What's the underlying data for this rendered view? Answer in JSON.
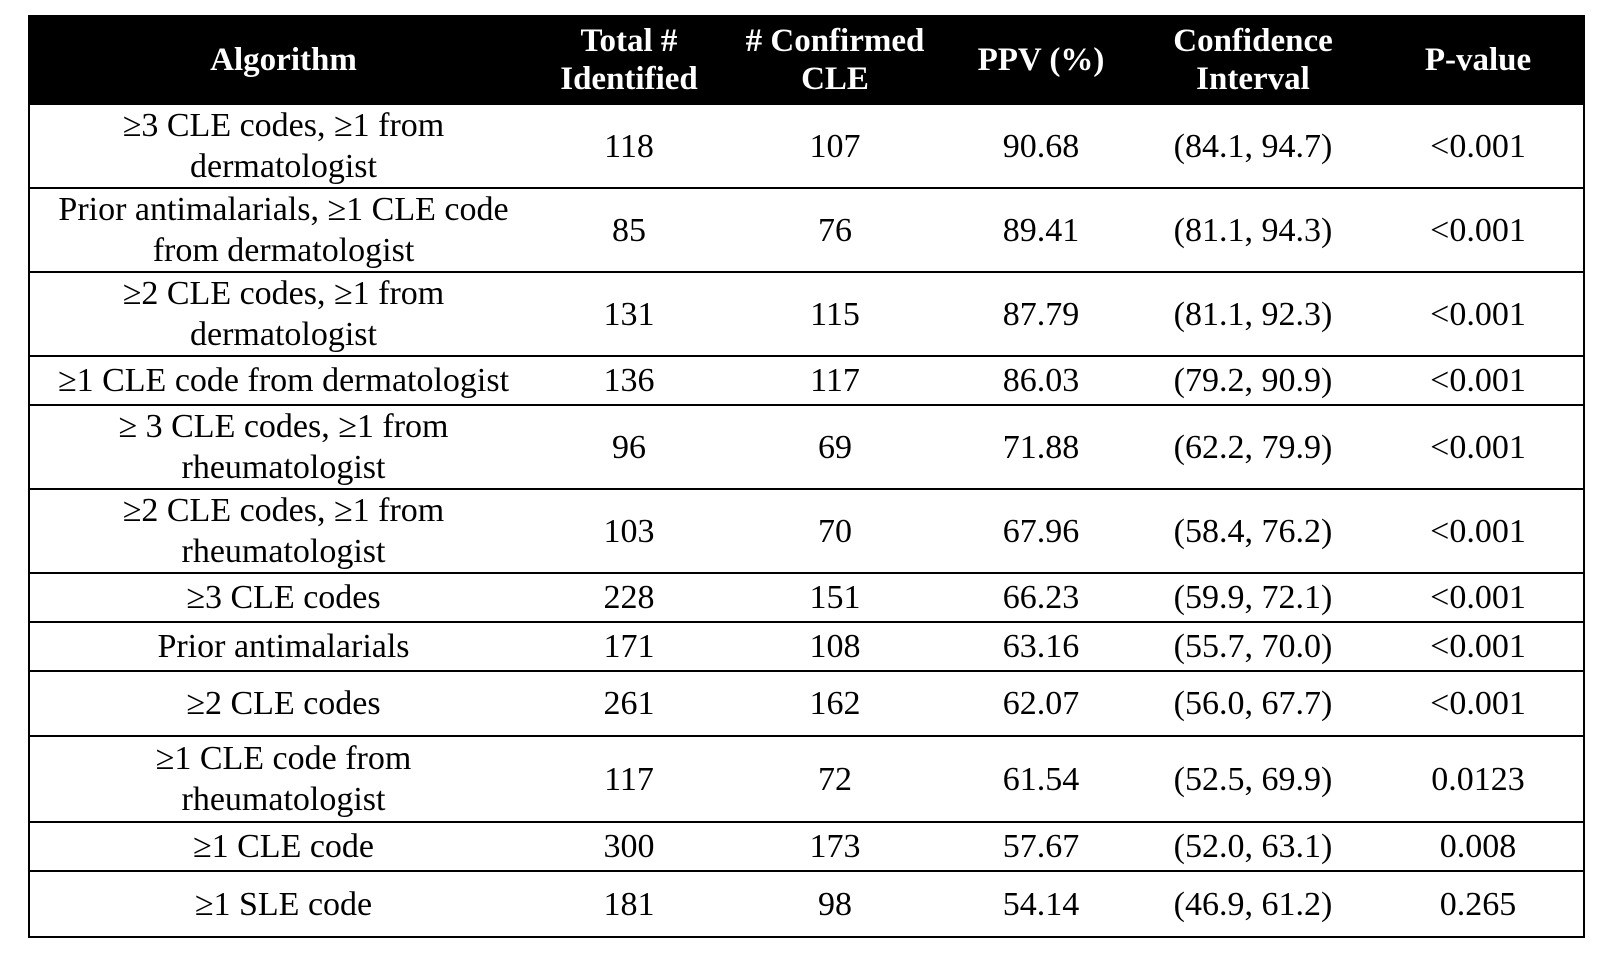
{
  "table": {
    "headers": {
      "algorithm": "Algorithm",
      "total_line1": "Total #",
      "total_line2": "Identified",
      "confirmed_line1": "# Confirmed",
      "confirmed_line2": "CLE",
      "ppv": "PPV (%)",
      "ci_line1": "Confidence",
      "ci_line2": "Interval",
      "pvalue": "P-value"
    },
    "rows": [
      {
        "algorithm_line1": "≥3 CLE codes, ≥1 from",
        "algorithm_line2": "dermatologist",
        "total": "118",
        "confirmed": "107",
        "ppv": "90.68",
        "ci": "(84.1, 94.7)",
        "pvalue": "<0.001"
      },
      {
        "algorithm_line1": "Prior antimalarials, ≥1 CLE code",
        "algorithm_line2": "from dermatologist",
        "total": "85",
        "confirmed": "76",
        "ppv": "89.41",
        "ci": "(81.1, 94.3)",
        "pvalue": "<0.001"
      },
      {
        "algorithm_line1": "≥2 CLE codes, ≥1 from",
        "algorithm_line2": "dermatologist",
        "total": "131",
        "confirmed": "115",
        "ppv": "87.79",
        "ci": "(81.1, 92.3)",
        "pvalue": "<0.001"
      },
      {
        "algorithm_line1": "≥1 CLE code from dermatologist",
        "algorithm_line2": "",
        "total": "136",
        "confirmed": "117",
        "ppv": "86.03",
        "ci": "(79.2, 90.9)",
        "pvalue": "<0.001"
      },
      {
        "algorithm_line1": "≥ 3 CLE codes, ≥1 from",
        "algorithm_line2": "rheumatologist",
        "total": "96",
        "confirmed": "69",
        "ppv": "71.88",
        "ci": "(62.2, 79.9)",
        "pvalue": "<0.001"
      },
      {
        "algorithm_line1": "≥2 CLE codes, ≥1 from",
        "algorithm_line2": "rheumatologist",
        "total": "103",
        "confirmed": "70",
        "ppv": "67.96",
        "ci": "(58.4, 76.2)",
        "pvalue": "<0.001"
      },
      {
        "algorithm_line1": "≥3 CLE codes",
        "algorithm_line2": "",
        "total": "228",
        "confirmed": "151",
        "ppv": "66.23",
        "ci": "(59.9, 72.1)",
        "pvalue": "<0.001"
      },
      {
        "algorithm_line1": "Prior antimalarials",
        "algorithm_line2": "",
        "total": "171",
        "confirmed": "108",
        "ppv": "63.16",
        "ci": "(55.7, 70.0)",
        "pvalue": "<0.001"
      },
      {
        "algorithm_line1": "≥2 CLE codes",
        "algorithm_line2": "",
        "total": "261",
        "confirmed": "162",
        "ppv": "62.07",
        "ci": "(56.0, 67.7)",
        "pvalue": "<0.001"
      },
      {
        "algorithm_line1": "≥1 CLE code from",
        "algorithm_line2": "rheumatologist",
        "total": "117",
        "confirmed": "72",
        "ppv": "61.54",
        "ci": "(52.5, 69.9)",
        "pvalue": "0.0123"
      },
      {
        "algorithm_line1": "≥1 CLE code",
        "algorithm_line2": "",
        "total": "300",
        "confirmed": "173",
        "ppv": "57.67",
        "ci": "(52.0, 63.1)",
        "pvalue": "0.008"
      },
      {
        "algorithm_line1": "≥1 SLE code",
        "algorithm_line2": "",
        "total": "181",
        "confirmed": "98",
        "ppv": "54.14",
        "ci": "(46.9, 61.2)",
        "pvalue": "0.265"
      }
    ]
  }
}
